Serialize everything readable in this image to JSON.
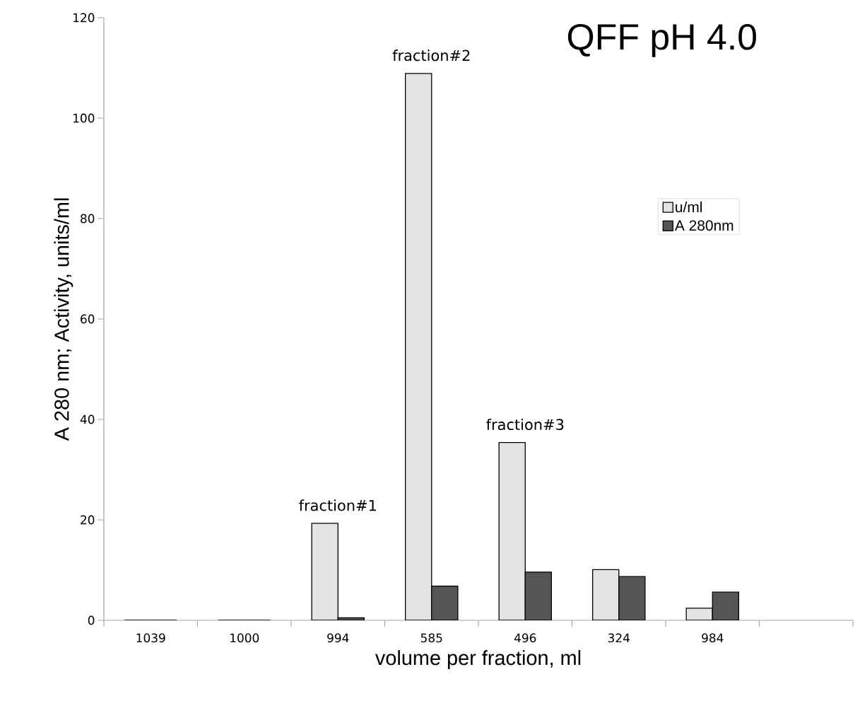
{
  "chart_data": {
    "type": "bar",
    "title": "QFF pH 4.0",
    "xlabel": "volume per fraction, ml",
    "ylabel": "A 280 nm;     Activity, units/ml",
    "categories": [
      "1039",
      "1000",
      "994",
      "585",
      "496",
      "324",
      "984",
      null
    ],
    "series": [
      {
        "name": "u/ml",
        "color": "#e4e4e4",
        "values": [
          0,
          0,
          19.3,
          108.9,
          35.4,
          10.1,
          2.4,
          null
        ]
      },
      {
        "name": "A 280nm",
        "color": "#555555",
        "values": [
          0,
          0,
          0.5,
          6.8,
          9.6,
          8.7,
          5.6,
          null
        ]
      }
    ],
    "ylim": [
      0,
      120
    ],
    "yticks": [
      0,
      20,
      40,
      60,
      80,
      100,
      120
    ],
    "grid": false,
    "legend": "top right",
    "annotations": [
      {
        "text": "fraction#1",
        "x": "994",
        "y": 19.3
      },
      {
        "text": "fraction#2",
        "x": "585",
        "y": 108.9
      },
      {
        "text": "fraction#3",
        "x": "496",
        "y": 35.4
      }
    ]
  }
}
